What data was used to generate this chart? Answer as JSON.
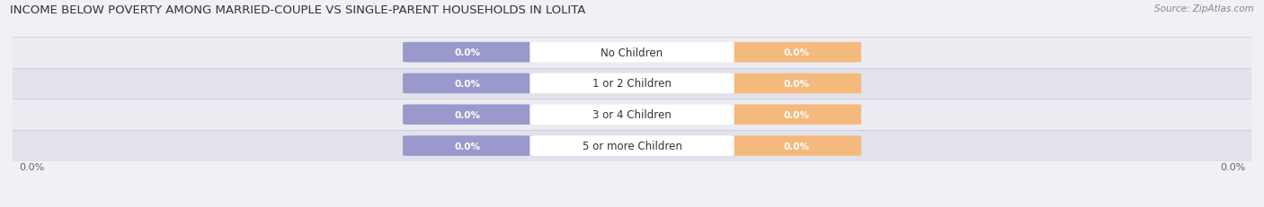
{
  "title": "INCOME BELOW POVERTY AMONG MARRIED-COUPLE VS SINGLE-PARENT HOUSEHOLDS IN LOLITA",
  "source": "Source: ZipAtlas.com",
  "categories": [
    "No Children",
    "1 or 2 Children",
    "3 or 4 Children",
    "5 or more Children"
  ],
  "married_values": [
    0.0,
    0.0,
    0.0,
    0.0
  ],
  "single_values": [
    0.0,
    0.0,
    0.0,
    0.0
  ],
  "married_color": "#9999cc",
  "single_color": "#f4b97c",
  "row_bg_colors": [
    "#ebebf2",
    "#e2e2ec"
  ],
  "title_fontsize": 9.5,
  "source_fontsize": 7.5,
  "tick_fontsize": 8,
  "label_fontsize": 7.5,
  "cat_fontsize": 8.5,
  "xlim_left": "0.0%",
  "xlim_right": "0.0%",
  "background_color": "#f0f0f5"
}
